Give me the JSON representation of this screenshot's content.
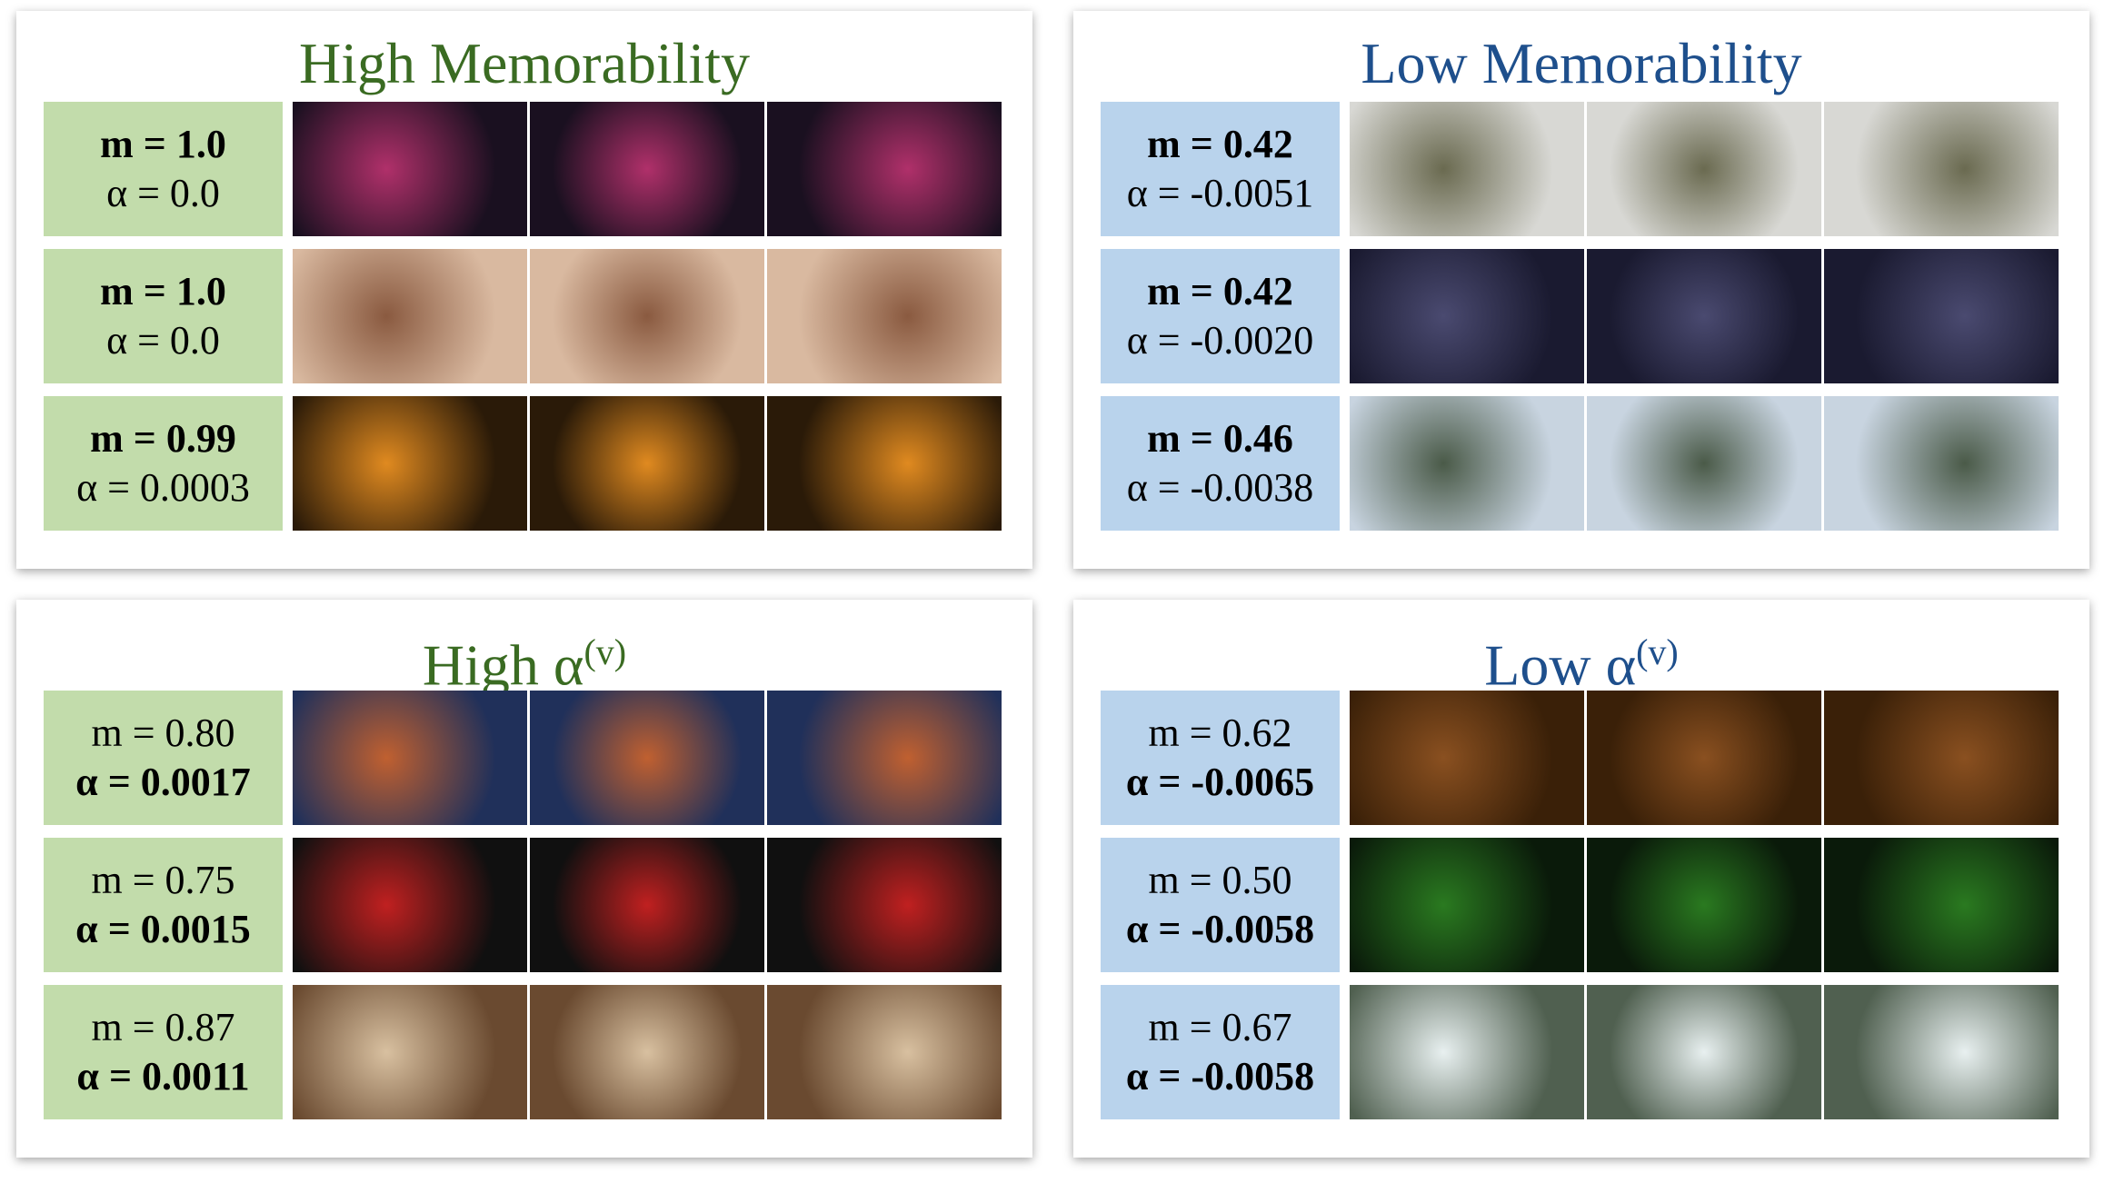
{
  "panels": [
    {
      "title": "High Memorability",
      "rows": [
        {
          "m": "m = 1.0",
          "alpha": "α = 0.0"
        },
        {
          "m": "m = 1.0",
          "alpha": "α = 0.0"
        },
        {
          "m": "m = 0.99",
          "alpha": "α = 0.0003"
        }
      ]
    },
    {
      "title": "Low Memorability",
      "rows": [
        {
          "m": "m = 0.42",
          "alpha": "α = -0.0051"
        },
        {
          "m": "m = 0.42",
          "alpha": "α = -0.0020"
        },
        {
          "m": "m = 0.46",
          "alpha": "α = -0.0038"
        }
      ]
    },
    {
      "title": "High α",
      "title_sup": "(v)",
      "rows": [
        {
          "m": "m = 0.80",
          "alpha": "α = 0.0017"
        },
        {
          "m": "m = 0.75",
          "alpha": "α = 0.0015"
        },
        {
          "m": "m = 0.87",
          "alpha": "α = 0.0011"
        }
      ]
    },
    {
      "title": "Low α",
      "title_sup": "(v)",
      "rows": [
        {
          "m": "m = 0.62",
          "alpha": "α = -0.0065"
        },
        {
          "m": "m = 0.50",
          "alpha": "α = -0.0058"
        },
        {
          "m": "m = 0.67",
          "alpha": "α = -0.0058"
        }
      ]
    }
  ]
}
